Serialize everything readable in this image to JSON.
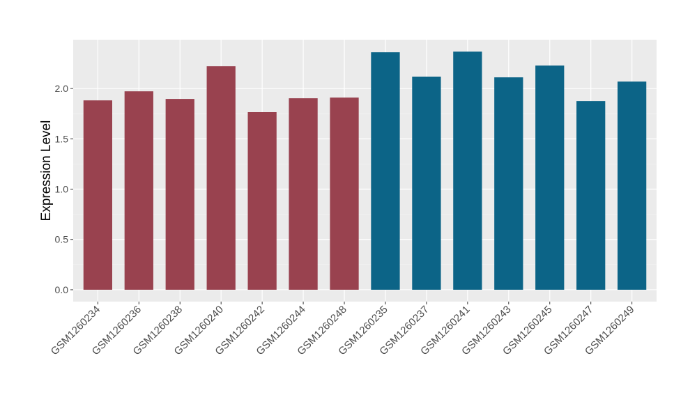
{
  "chart_data": {
    "type": "bar",
    "y_label": "Expression Level",
    "categories": [
      "GSM1260234",
      "GSM1260236",
      "GSM1260238",
      "GSM1260240",
      "GSM1260242",
      "GSM1260244",
      "GSM1260248",
      "GSM1260235",
      "GSM1260237",
      "GSM1260241",
      "GSM1260243",
      "GSM1260245",
      "GSM1260247",
      "GSM1260249"
    ],
    "values": [
      1.882,
      1.972,
      1.896,
      2.221,
      1.765,
      1.903,
      1.91,
      2.36,
      2.118,
      2.367,
      2.111,
      2.228,
      1.875,
      2.069
    ],
    "colors": [
      "#99424f",
      "#99424f",
      "#99424f",
      "#99424f",
      "#99424f",
      "#99424f",
      "#99424f",
      "#0c6487",
      "#0c6487",
      "#0c6487",
      "#0c6487",
      "#0c6487",
      "#0c6487",
      "#0c6487"
    ],
    "ylim": [
      -0.118,
      2.485
    ],
    "yticks": [
      {
        "value": 0,
        "label": "0.0"
      },
      {
        "value": 0.5,
        "label": "0.5"
      },
      {
        "value": 1,
        "label": "1.0"
      },
      {
        "value": 1.5,
        "label": "1.5"
      },
      {
        "value": 2,
        "label": "2.0"
      }
    ],
    "grid": true
  }
}
